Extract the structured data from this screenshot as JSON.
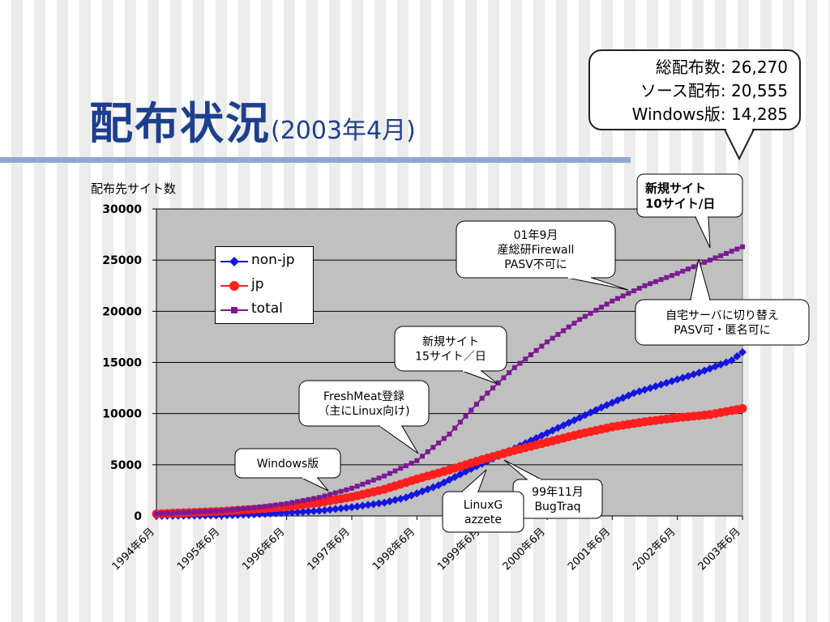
{
  "slide": {
    "title": "配布状況",
    "title_suffix": "(2003年4月)",
    "stats": [
      "総配布数: 26,270",
      "ソース配布: 20,555",
      "Windows版: 14,285"
    ]
  },
  "chart_data": {
    "type": "line",
    "ylabel": "配布先サイト数",
    "ylim": [
      0,
      30000
    ],
    "yticks": [
      0,
      5000,
      10000,
      15000,
      20000,
      25000,
      30000
    ],
    "xlim": [
      "1994-06",
      "2003-06"
    ],
    "xticks": [
      "1994年6月",
      "1995年6月",
      "1996年6月",
      "1997年6月",
      "1998年6月",
      "1999年6月",
      "2000年6月",
      "2001年6月",
      "2002年6月",
      "2003年6月"
    ],
    "grid": true,
    "legend_position": "upper-left",
    "series": [
      {
        "name": "non-jp",
        "color": "#1515e0",
        "marker": "diamond",
        "points": [
          [
            "1994-06",
            0
          ],
          [
            "1995-06",
            50
          ],
          [
            "1995-12",
            150
          ],
          [
            "1996-06",
            300
          ],
          [
            "1996-12",
            500
          ],
          [
            "1997-06",
            850
          ],
          [
            "1997-12",
            1300
          ],
          [
            "1998-04",
            1800
          ],
          [
            "1998-10",
            3000
          ],
          [
            "1999-04",
            4600
          ],
          [
            "1999-10",
            6100
          ],
          [
            "2000-04",
            7600
          ],
          [
            "2000-10",
            9100
          ],
          [
            "2001-04",
            10600
          ],
          [
            "2001-10",
            12000
          ],
          [
            "2002-04",
            13000
          ],
          [
            "2002-10",
            14000
          ],
          [
            "2003-04",
            15200
          ],
          [
            "2003-06",
            16000
          ]
        ]
      },
      {
        "name": "jp",
        "color": "#ff1f1f",
        "marker": "circle",
        "points": [
          [
            "1994-06",
            200
          ],
          [
            "1995-06",
            450
          ],
          [
            "1995-12",
            650
          ],
          [
            "1996-06",
            900
          ],
          [
            "1996-12",
            1300
          ],
          [
            "1997-06",
            1850
          ],
          [
            "1997-12",
            2600
          ],
          [
            "1998-06",
            3600
          ],
          [
            "1998-12",
            4500
          ],
          [
            "1999-06",
            5500
          ],
          [
            "1999-12",
            6400
          ],
          [
            "2000-06",
            7200
          ],
          [
            "2000-12",
            8000
          ],
          [
            "2001-06",
            8700
          ],
          [
            "2001-12",
            9200
          ],
          [
            "2002-06",
            9600
          ],
          [
            "2002-12",
            9900
          ],
          [
            "2003-06",
            10500
          ]
        ]
      },
      {
        "name": "total",
        "color": "#7b1a92",
        "marker": "square",
        "points": [
          [
            "1994-06",
            200
          ],
          [
            "1995-06",
            500
          ],
          [
            "1995-12",
            800
          ],
          [
            "1996-06",
            1200
          ],
          [
            "1996-12",
            1800
          ],
          [
            "1997-06",
            2700
          ],
          [
            "1997-12",
            3900
          ],
          [
            "1998-06",
            5400
          ],
          [
            "1998-12",
            8000
          ],
          [
            "1999-06",
            11500
          ],
          [
            "1999-12",
            14500
          ],
          [
            "2000-06",
            17000
          ],
          [
            "2000-12",
            19200
          ],
          [
            "2001-06",
            21000
          ],
          [
            "2001-12",
            22500
          ],
          [
            "2002-06",
            23700
          ],
          [
            "2002-12",
            25000
          ],
          [
            "2003-06",
            26300
          ]
        ]
      }
    ],
    "annotations": [
      {
        "lines": [
          "新規サイト",
          "10サイト/日"
        ],
        "bold": true
      },
      {
        "lines": [
          "01年9月",
          "産総研Firewall",
          "PASV不可に"
        ]
      },
      {
        "lines": [
          "自宅サーバに切り替え",
          "PASV可・匿名可に"
        ]
      },
      {
        "lines": [
          "新規サイト",
          "15サイト／日"
        ]
      },
      {
        "lines": [
          "FreshMeat登録",
          "（主にLinux向け)"
        ]
      },
      {
        "lines": [
          "Windows版"
        ]
      },
      {
        "lines": [
          "99年11月",
          "BugTraq"
        ]
      },
      {
        "lines": [
          "LinuxG",
          "azzete"
        ]
      }
    ]
  }
}
